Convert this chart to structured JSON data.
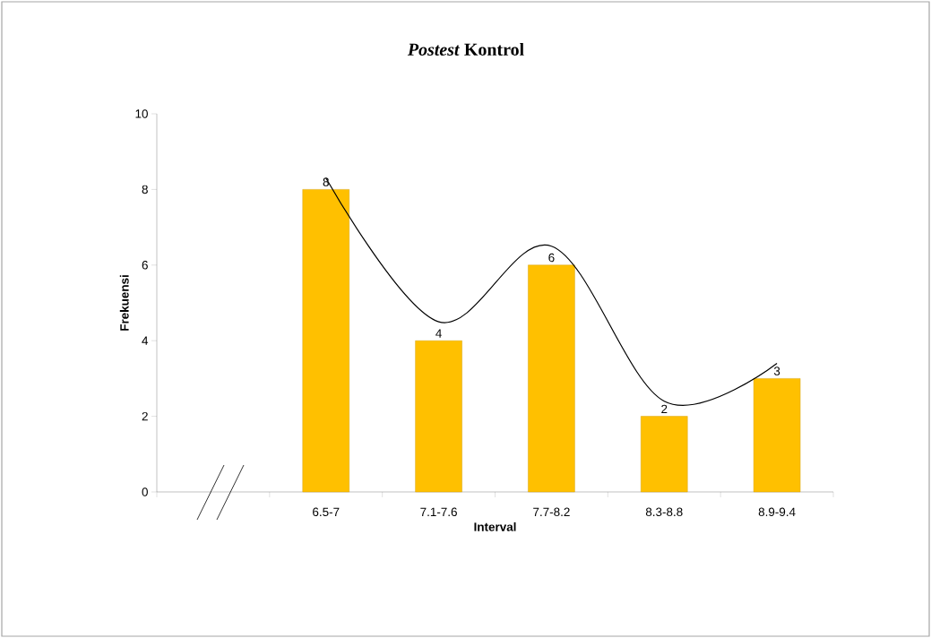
{
  "chart_data": {
    "type": "bar",
    "title": "*Postest* Kontrol",
    "xlabel": "Interval",
    "ylabel": "Frekuensi",
    "categories": [
      null,
      "6.5-7",
      "7.1-7.6",
      "7.7-8.2",
      "8.3-8.8",
      "8.9-9.4"
    ],
    "series": [
      {
        "color": "#ffc000",
        "values": [
          null,
          8,
          4,
          6,
          2,
          3
        ],
        "value_labels": [
          null,
          "8",
          "4",
          "6",
          "2",
          "3"
        ]
      },
      {
        "type": "line",
        "color": "#000000",
        "values": [
          null,
          8.3,
          4.5,
          6.5,
          2.4,
          3.4
        ]
      }
    ],
    "ylim": [
      0,
      10
    ],
    "yticks": [
      0,
      2,
      4,
      6,
      8,
      10
    ],
    "grid": false,
    "marker": "none",
    "line_style": "solid"
  }
}
